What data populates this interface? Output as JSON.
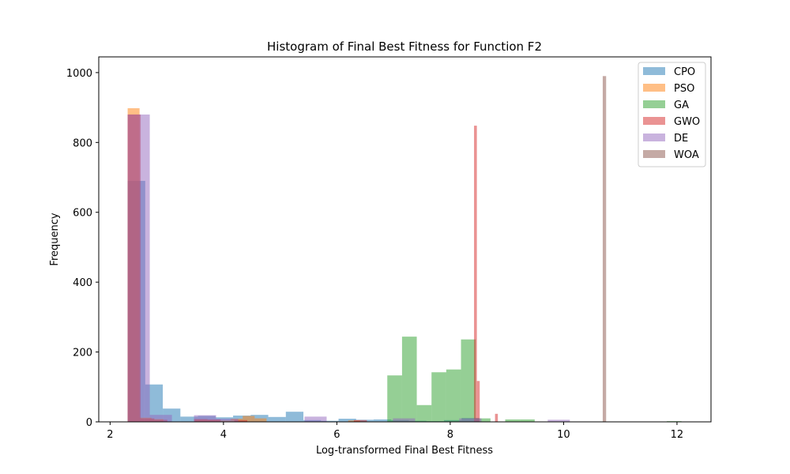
{
  "chart_data": {
    "type": "histogram",
    "title": "Histogram of Final Best Fitness for Function F2",
    "xlabel": "Log-transformed Final Best Fitness",
    "ylabel": "Frequency",
    "xlim": [
      1.8,
      12.6
    ],
    "ylim": [
      0,
      1045
    ],
    "xticks": [
      2,
      4,
      6,
      8,
      10,
      12
    ],
    "yticks": [
      0,
      200,
      400,
      600,
      800,
      1000
    ],
    "grid": false,
    "legend_position": "top-right",
    "series": [
      {
        "name": "CPO",
        "color": "#1f77b4",
        "bins": [
          {
            "x0": 2.31,
            "x1": 2.62,
            "count": 690
          },
          {
            "x0": 2.62,
            "x1": 2.93,
            "count": 107
          },
          {
            "x0": 2.93,
            "x1": 3.24,
            "count": 38
          },
          {
            "x0": 3.24,
            "x1": 3.55,
            "count": 15
          },
          {
            "x0": 3.55,
            "x1": 3.86,
            "count": 17
          },
          {
            "x0": 3.86,
            "x1": 4.17,
            "count": 13
          },
          {
            "x0": 4.17,
            "x1": 4.48,
            "count": 18
          },
          {
            "x0": 4.48,
            "x1": 4.79,
            "count": 20
          },
          {
            "x0": 4.79,
            "x1": 5.1,
            "count": 14
          },
          {
            "x0": 5.1,
            "x1": 5.41,
            "count": 29
          },
          {
            "x0": 5.41,
            "x1": 5.72,
            "count": 5
          },
          {
            "x0": 5.72,
            "x1": 6.03,
            "count": 3
          },
          {
            "x0": 6.03,
            "x1": 6.34,
            "count": 9
          },
          {
            "x0": 6.34,
            "x1": 6.65,
            "count": 6
          },
          {
            "x0": 6.65,
            "x1": 6.96,
            "count": 7
          },
          {
            "x0": 6.96,
            "x1": 7.27,
            "count": 5
          },
          {
            "x0": 7.27,
            "x1": 7.58,
            "count": 3
          },
          {
            "x0": 7.58,
            "x1": 7.89,
            "count": 2
          },
          {
            "x0": 7.89,
            "x1": 8.2,
            "count": 5
          },
          {
            "x0": 8.2,
            "x1": 8.51,
            "count": 11
          }
        ]
      },
      {
        "name": "PSO",
        "color": "#ff7f0e",
        "bins": [
          {
            "x0": 2.31,
            "x1": 2.52,
            "count": 898
          },
          {
            "x0": 2.52,
            "x1": 2.73,
            "count": 12
          },
          {
            "x0": 2.73,
            "x1": 2.94,
            "count": 8
          },
          {
            "x0": 3.5,
            "x1": 3.71,
            "count": 6
          },
          {
            "x0": 3.71,
            "x1": 3.92,
            "count": 5
          },
          {
            "x0": 3.92,
            "x1": 4.13,
            "count": 4
          },
          {
            "x0": 4.13,
            "x1": 4.34,
            "count": 9
          },
          {
            "x0": 4.34,
            "x1": 4.55,
            "count": 17
          },
          {
            "x0": 4.55,
            "x1": 4.76,
            "count": 10
          },
          {
            "x0": 6.2,
            "x1": 6.41,
            "count": 4
          }
        ]
      },
      {
        "name": "GA",
        "color": "#2ca02c",
        "bins": [
          {
            "x0": 6.89,
            "x1": 7.15,
            "count": 133
          },
          {
            "x0": 7.15,
            "x1": 7.41,
            "count": 244
          },
          {
            "x0": 7.41,
            "x1": 7.67,
            "count": 48
          },
          {
            "x0": 7.67,
            "x1": 7.93,
            "count": 142
          },
          {
            "x0": 7.93,
            "x1": 8.19,
            "count": 150
          },
          {
            "x0": 8.19,
            "x1": 8.45,
            "count": 236
          },
          {
            "x0": 8.45,
            "x1": 8.71,
            "count": 10
          },
          {
            "x0": 8.97,
            "x1": 9.23,
            "count": 7
          },
          {
            "x0": 9.23,
            "x1": 9.49,
            "count": 7
          },
          {
            "x0": 11.82,
            "x1": 12.08,
            "count": 2
          }
        ]
      },
      {
        "name": "GWO",
        "color": "#d62728",
        "bins": [
          {
            "x0": 2.31,
            "x1": 2.54,
            "count": 880
          },
          {
            "x0": 2.54,
            "x1": 2.78,
            "count": 10
          },
          {
            "x0": 2.78,
            "x1": 3.01,
            "count": 6
          },
          {
            "x0": 3.48,
            "x1": 3.72,
            "count": 8
          },
          {
            "x0": 3.72,
            "x1": 3.95,
            "count": 7
          },
          {
            "x0": 4.19,
            "x1": 4.42,
            "count": 5
          },
          {
            "x0": 6.3,
            "x1": 6.53,
            "count": 5
          },
          {
            "x0": 8.42,
            "x1": 8.47,
            "count": 848
          },
          {
            "x0": 8.47,
            "x1": 8.52,
            "count": 117
          },
          {
            "x0": 8.79,
            "x1": 8.84,
            "count": 23
          }
        ]
      },
      {
        "name": "DE",
        "color": "#9467bd",
        "bins": [
          {
            "x0": 2.31,
            "x1": 2.7,
            "count": 880
          },
          {
            "x0": 2.7,
            "x1": 3.09,
            "count": 20
          },
          {
            "x0": 3.48,
            "x1": 3.87,
            "count": 19
          },
          {
            "x0": 3.87,
            "x1": 4.26,
            "count": 9
          },
          {
            "x0": 5.43,
            "x1": 5.82,
            "count": 15
          },
          {
            "x0": 6.99,
            "x1": 7.38,
            "count": 10
          },
          {
            "x0": 8.16,
            "x1": 8.55,
            "count": 10
          },
          {
            "x0": 9.72,
            "x1": 10.11,
            "count": 6
          }
        ]
      },
      {
        "name": "WOA",
        "color": "#8c564b",
        "bins": [
          {
            "x0": 10.69,
            "x1": 10.75,
            "count": 990
          }
        ]
      }
    ]
  }
}
